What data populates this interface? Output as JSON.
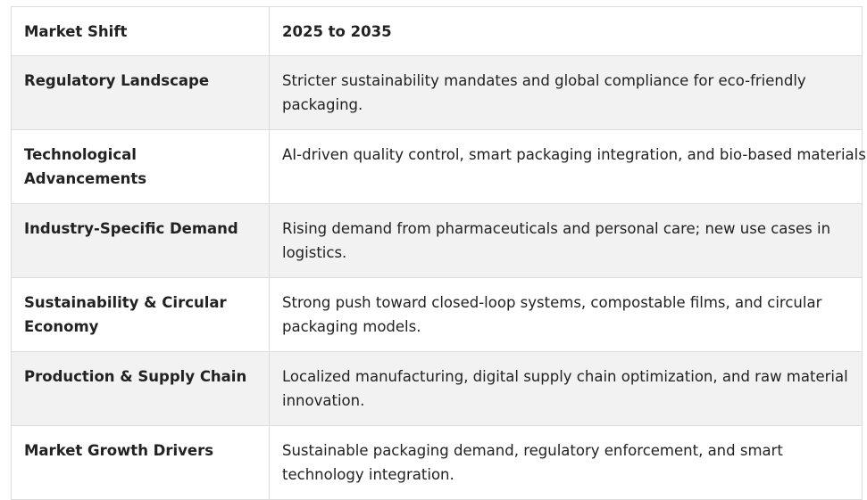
{
  "table": {
    "headers": [
      "Market Shift",
      "2025 to 2035"
    ],
    "rows": [
      {
        "shift": "Regulatory Landscape",
        "outlook": "Stricter sustainability mandates and global compliance for eco-friendly packaging."
      },
      {
        "shift": "Technological Advancements",
        "outlook": "AI-driven quality control, smart packaging integration, and bio-based materials."
      },
      {
        "shift": "Industry-Specific Demand",
        "outlook": "Rising demand from pharmaceuticals and personal care; new use cases in logistics."
      },
      {
        "shift": "Sustainability & Circular Economy",
        "outlook": "Strong push toward closed-loop systems, compostable films, and circular packaging models."
      },
      {
        "shift": "Production & Supply Chain",
        "outlook": "Localized manufacturing, digital supply chain optimization, and raw material innovation."
      },
      {
        "shift": "Market Growth Drivers",
        "outlook": "Sustainable packaging demand, regulatory enforcement, and smart technology integration."
      }
    ]
  }
}
